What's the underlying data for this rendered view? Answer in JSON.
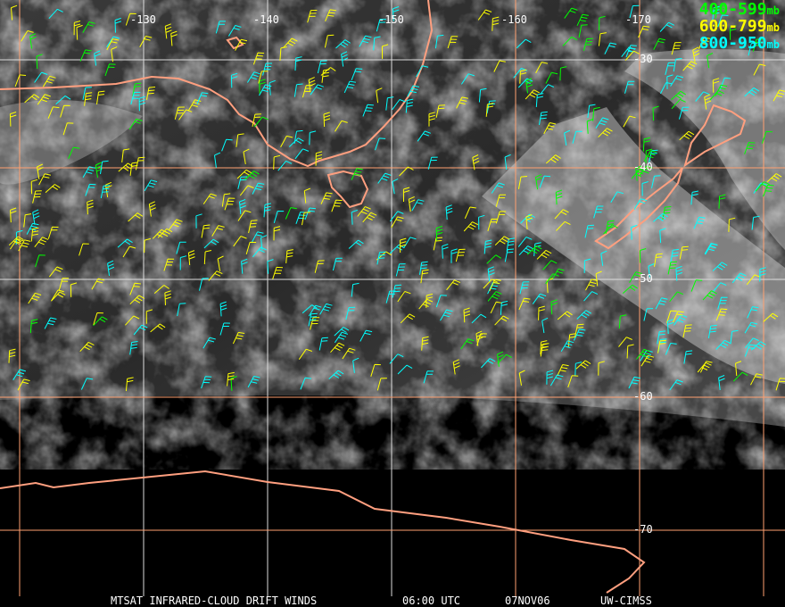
{
  "title": "MTSAT INFRARED-CLOUD DRIFT WINDS",
  "time": "06:00 UTC",
  "date": "07NOV06",
  "source": "UW-CIMSS",
  "legend": [
    {
      "range": "400-599",
      "unit": "mb",
      "color": "#00ff00"
    },
    {
      "range": "600-799",
      "unit": "mb",
      "color": "#ffff00"
    },
    {
      "range": "800-950",
      "unit": "mb",
      "color": "#00ffff"
    }
  ],
  "longitude_labels": [
    "-130",
    "-140",
    "-150",
    "-160",
    "-170"
  ],
  "latitude_labels": [
    "-30",
    "-40",
    "-50",
    "-60",
    "-70"
  ],
  "colors": {
    "coastline": "#ff9f7f",
    "grid": "#ffa070",
    "background": "#000000"
  }
}
